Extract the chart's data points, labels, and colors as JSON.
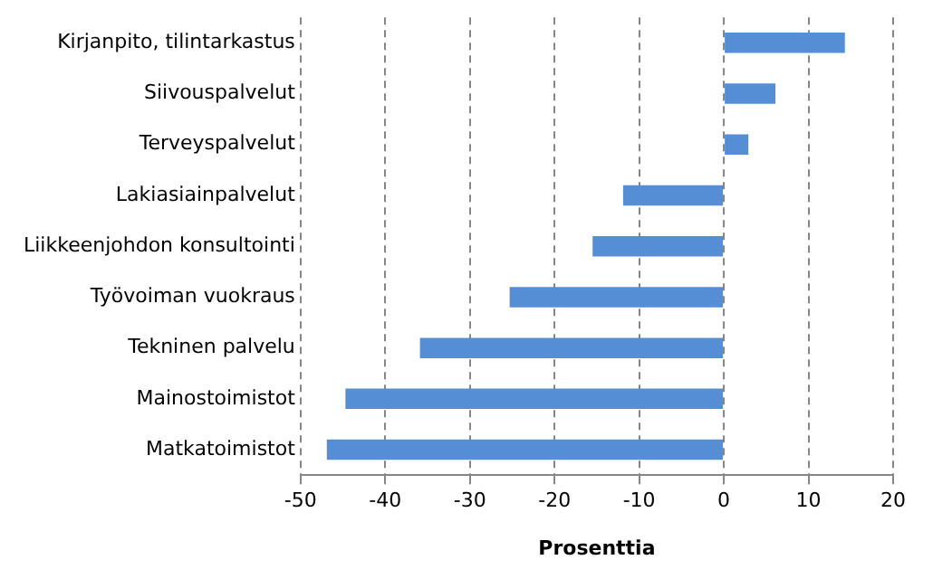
{
  "chart_data": {
    "type": "bar",
    "orientation": "horizontal",
    "xlabel": "Prosenttia",
    "categories": [
      "Kirjanpito, tilintarkastus",
      "Siivouspalvelut",
      "Terveyspalvelut",
      "Lakiasiainpalvelut",
      "Liikkeenjohdon konsultointi",
      "Työvoiman vuokraus",
      "Tekninen palvelu",
      "Mainostoimistot",
      "Matkatoimistot"
    ],
    "values": [
      14.3,
      6.1,
      2.9,
      -11.9,
      -15.5,
      -25.3,
      -35.9,
      -44.7,
      -46.9
    ],
    "color": "#558ed5",
    "xlim": [
      -50,
      20
    ],
    "xticks": [
      -50,
      -40,
      -30,
      -20,
      -10,
      0,
      10,
      20
    ],
    "grid": "x"
  }
}
